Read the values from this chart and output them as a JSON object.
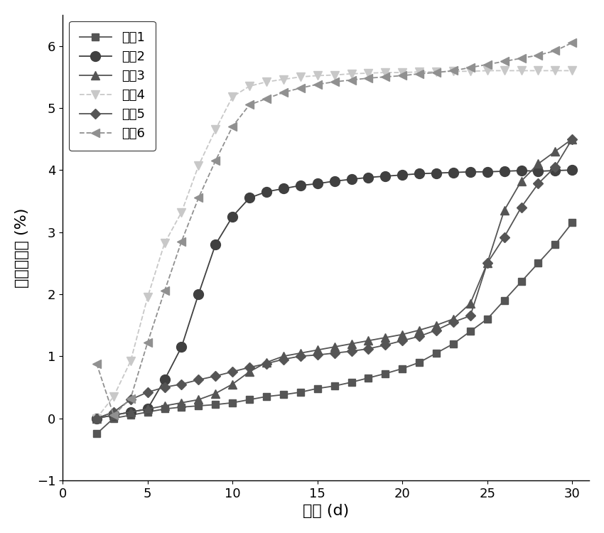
{
  "series": [
    {
      "label": "矿样1",
      "marker": "s",
      "color": "#555555",
      "linestyle": "-",
      "markersize": 7,
      "x": [
        2,
        3,
        4,
        5,
        6,
        7,
        8,
        9,
        10,
        11,
        12,
        13,
        14,
        15,
        16,
        17,
        18,
        19,
        20,
        21,
        22,
        23,
        24,
        25,
        26,
        27,
        28,
        29,
        30
      ],
      "y": [
        -0.25,
        0.0,
        0.05,
        0.1,
        0.15,
        0.18,
        0.2,
        0.22,
        0.25,
        0.3,
        0.35,
        0.38,
        0.42,
        0.48,
        0.52,
        0.58,
        0.65,
        0.72,
        0.8,
        0.9,
        1.05,
        1.2,
        1.4,
        1.6,
        1.9,
        2.2,
        2.5,
        2.8,
        3.15
      ]
    },
    {
      "label": "矿样2",
      "marker": "o",
      "color": "#404040",
      "linestyle": "-",
      "markersize": 10,
      "x": [
        2,
        3,
        4,
        5,
        6,
        7,
        8,
        9,
        10,
        11,
        12,
        13,
        14,
        15,
        16,
        17,
        18,
        19,
        20,
        21,
        22,
        23,
        24,
        25,
        26,
        27,
        28,
        29,
        30
      ],
      "y": [
        0.0,
        0.05,
        0.1,
        0.15,
        0.62,
        1.15,
        2.0,
        2.8,
        3.25,
        3.55,
        3.65,
        3.7,
        3.75,
        3.78,
        3.82,
        3.85,
        3.88,
        3.9,
        3.92,
        3.94,
        3.95,
        3.96,
        3.97,
        3.97,
        3.98,
        3.99,
        3.98,
        3.99,
        4.0
      ]
    },
    {
      "label": "矿样3",
      "marker": "^",
      "color": "#555555",
      "linestyle": "-",
      "markersize": 8,
      "x": [
        2,
        3,
        4,
        5,
        6,
        7,
        8,
        9,
        10,
        11,
        12,
        13,
        14,
        15,
        16,
        17,
        18,
        19,
        20,
        21,
        22,
        23,
        24,
        25,
        26,
        27,
        28,
        29,
        30
      ],
      "y": [
        0.0,
        0.05,
        0.1,
        0.15,
        0.2,
        0.25,
        0.3,
        0.4,
        0.55,
        0.75,
        0.9,
        1.0,
        1.05,
        1.1,
        1.15,
        1.2,
        1.25,
        1.3,
        1.35,
        1.42,
        1.5,
        1.6,
        1.85,
        2.5,
        3.35,
        3.82,
        4.1,
        4.3,
        4.5
      ]
    },
    {
      "label": "矿样4",
      "marker": "v",
      "color": "#c8c8c8",
      "linestyle": "--",
      "markersize": 9,
      "x": [
        2,
        3,
        4,
        5,
        6,
        7,
        8,
        9,
        10,
        11,
        12,
        13,
        14,
        15,
        16,
        17,
        18,
        19,
        20,
        21,
        22,
        23,
        24,
        25,
        26,
        27,
        28,
        29,
        30
      ],
      "y": [
        0.0,
        0.35,
        0.92,
        1.95,
        2.82,
        3.32,
        4.07,
        4.65,
        5.18,
        5.35,
        5.42,
        5.46,
        5.5,
        5.52,
        5.53,
        5.55,
        5.56,
        5.57,
        5.57,
        5.58,
        5.58,
        5.59,
        5.59,
        5.6,
        5.6,
        5.6,
        5.6,
        5.6,
        5.6
      ]
    },
    {
      "label": "矿样5",
      "marker": "D",
      "color": "#555555",
      "linestyle": "-",
      "markersize": 7,
      "x": [
        2,
        3,
        4,
        5,
        6,
        7,
        8,
        9,
        10,
        11,
        12,
        13,
        14,
        15,
        16,
        17,
        18,
        19,
        20,
        21,
        22,
        23,
        24,
        25,
        26,
        27,
        28,
        29,
        30
      ],
      "y": [
        0.0,
        0.1,
        0.3,
        0.42,
        0.5,
        0.55,
        0.62,
        0.68,
        0.75,
        0.82,
        0.88,
        0.95,
        1.0,
        1.02,
        1.05,
        1.08,
        1.12,
        1.18,
        1.25,
        1.32,
        1.42,
        1.55,
        1.65,
        2.5,
        2.92,
        3.4,
        3.78,
        4.05,
        4.5
      ]
    },
    {
      "label": "矿样6",
      "marker": "<",
      "color": "#909090",
      "linestyle": "--",
      "markersize": 8,
      "x": [
        2,
        3,
        4,
        5,
        6,
        7,
        8,
        9,
        10,
        11,
        12,
        13,
        14,
        15,
        16,
        17,
        18,
        19,
        20,
        21,
        22,
        23,
        24,
        25,
        26,
        27,
        28,
        29,
        30
      ],
      "y": [
        0.88,
        0.05,
        0.32,
        1.22,
        2.05,
        2.85,
        3.55,
        4.15,
        4.7,
        5.05,
        5.15,
        5.25,
        5.32,
        5.38,
        5.42,
        5.45,
        5.48,
        5.5,
        5.52,
        5.55,
        5.57,
        5.6,
        5.65,
        5.7,
        5.75,
        5.8,
        5.85,
        5.92,
        6.05
      ]
    }
  ],
  "xlabel": "时间 (d)",
  "ylabel": "氧化增重率 (%)",
  "xlim": [
    0,
    31
  ],
  "ylim": [
    -1,
    6.5
  ],
  "xticks": [
    0,
    5,
    10,
    15,
    20,
    25,
    30
  ],
  "yticks": [
    -1,
    0,
    1,
    2,
    3,
    4,
    5,
    6
  ],
  "background_color": "#ffffff",
  "legend_loc": "upper left",
  "figsize": [
    8.5,
    7.5
  ],
  "dpi": 100
}
